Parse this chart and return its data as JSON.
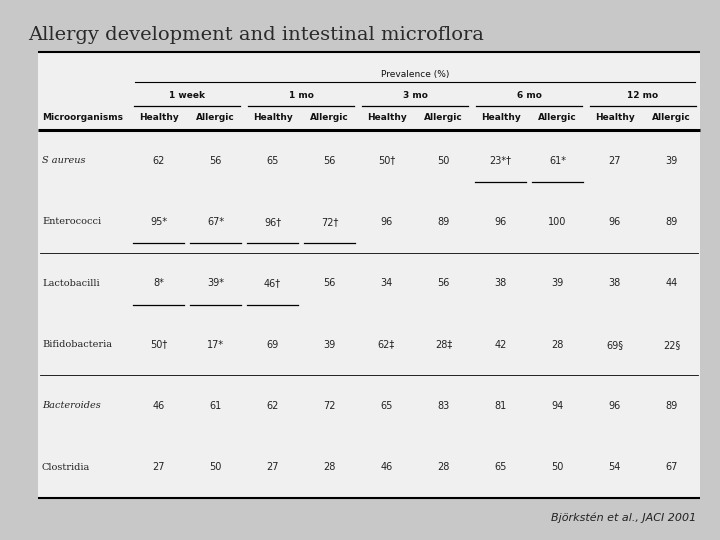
{
  "title": "Allergy development and intestinal microflora",
  "subtitle": "Björkstén et al., JACI 2001",
  "prevalence_label": "Prevalence (%)",
  "time_periods": [
    "1 week",
    "1 mo",
    "3 mo",
    "6 mo",
    "12 mo"
  ],
  "col_headers": [
    "Healthy",
    "Allergic",
    "Healthy",
    "Allergic",
    "Healthy",
    "Allergic",
    "Healthy",
    "Allergic",
    "Healthy",
    "Allergic"
  ],
  "row_header": "Microorganisms",
  "organisms": [
    "S aureus",
    "Enterococci",
    "Lactobacilli",
    "Bifidobacteria",
    "Bacteroides",
    "Clostridia"
  ],
  "organisms_italic": [
    true,
    false,
    false,
    false,
    true,
    false
  ],
  "data": [
    [
      "62",
      "56",
      "65",
      "56",
      "50†",
      "50",
      "23*†",
      "61*",
      "27",
      "39"
    ],
    [
      "95*",
      "67*",
      "96†",
      "72†",
      "96",
      "89",
      "96",
      "100",
      "96",
      "89"
    ],
    [
      "8*",
      "39*",
      "46†",
      "56",
      "34",
      "56",
      "38",
      "39",
      "38",
      "44"
    ],
    [
      "50†",
      "17*",
      "69",
      "39",
      "62‡",
      "28‡",
      "42",
      "28",
      "69§",
      "22§"
    ],
    [
      "46",
      "61",
      "62",
      "72",
      "65",
      "83",
      "81",
      "94",
      "96",
      "89"
    ],
    [
      "27",
      "50",
      "27",
      "28",
      "46",
      "28",
      "65",
      "50",
      "54",
      "67"
    ]
  ],
  "bg_color": "#c8c8c8",
  "table_bg": "#f0f0f0",
  "title_color": "#2a2a2a",
  "header_color": "#111111",
  "data_color": "#222222",
  "title_fontsize": 14,
  "header_fontsize": 6.5,
  "data_fontsize": 7,
  "org_fontsize": 7
}
